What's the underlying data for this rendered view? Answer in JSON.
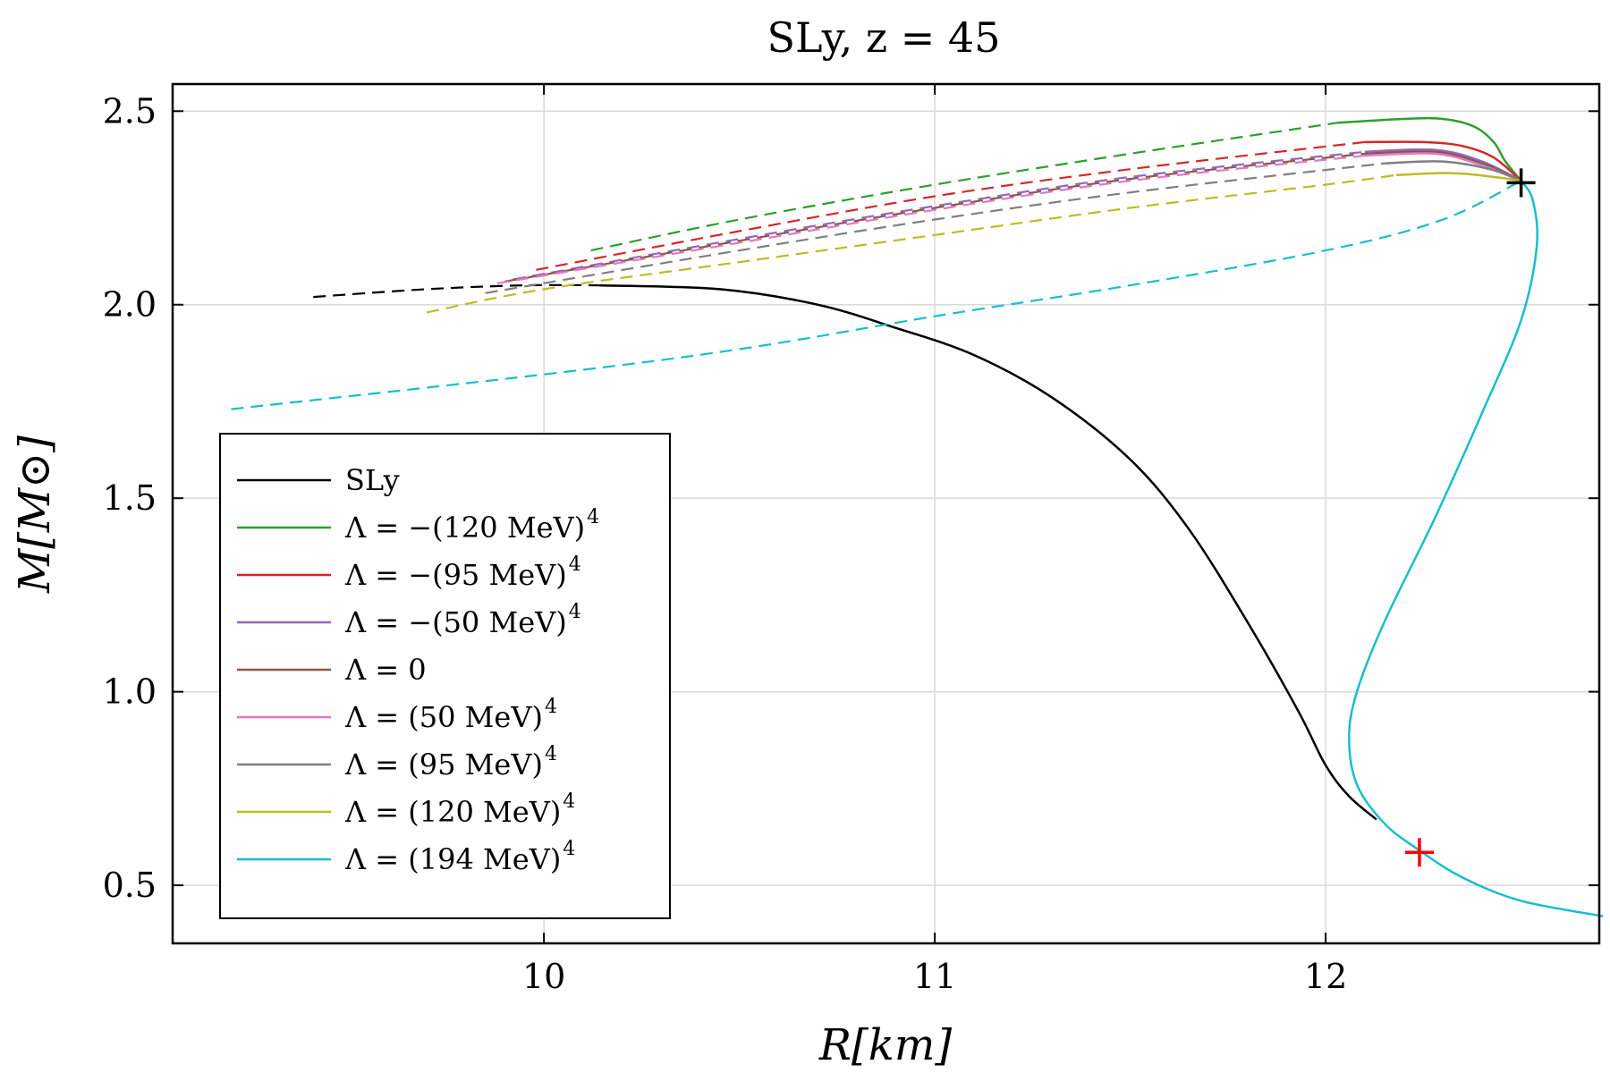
{
  "chart_data": {
    "type": "line",
    "title": "SLy,  z = 45",
    "xlabel": "R[km]",
    "ylabel": "M[M⊙]",
    "xlim": [
      9.05,
      12.7
    ],
    "ylim": [
      0.35,
      2.57
    ],
    "xticks": [
      10,
      11,
      12
    ],
    "xtick_labels": [
      "10",
      "11",
      "12"
    ],
    "yticks": [
      0.5,
      1.0,
      1.5,
      2.0,
      2.5
    ],
    "ytick_labels": [
      "0.5",
      "1.0",
      "1.5",
      "2.0",
      "2.5"
    ],
    "grid": true,
    "legend_position": "bottom-left",
    "series": [
      {
        "name": "SLy",
        "legend_label": "SLy",
        "superscript": "",
        "color": "#000000",
        "solid": [
          [
            10.14,
            2.05
          ],
          [
            10.45,
            2.04
          ],
          [
            10.7,
            2.0
          ],
          [
            10.9,
            1.94
          ],
          [
            11.1,
            1.87
          ],
          [
            11.3,
            1.76
          ],
          [
            11.5,
            1.6
          ],
          [
            11.65,
            1.42
          ],
          [
            11.8,
            1.18
          ],
          [
            11.93,
            0.95
          ],
          [
            12.0,
            0.81
          ],
          [
            12.06,
            0.73
          ],
          [
            12.13,
            0.67
          ]
        ],
        "dashed": [
          [
            9.41,
            2.02
          ],
          [
            9.7,
            2.04
          ],
          [
            9.95,
            2.05
          ],
          [
            10.14,
            2.05
          ]
        ]
      },
      {
        "name": "Lambda -120",
        "legend_label": "Λ = −(120 MeV)",
        "superscript": "4",
        "color": "#2ca02c",
        "solid": [
          [
            12.03,
            2.47
          ],
          [
            12.2,
            2.48
          ],
          [
            12.3,
            2.48
          ],
          [
            12.38,
            2.46
          ],
          [
            12.43,
            2.42
          ],
          [
            12.46,
            2.37
          ],
          [
            12.5,
            2.32
          ]
        ],
        "dashed": [
          [
            10.12,
            2.14
          ],
          [
            10.5,
            2.22
          ],
          [
            11.0,
            2.31
          ],
          [
            11.5,
            2.39
          ],
          [
            12.03,
            2.47
          ]
        ]
      },
      {
        "name": "Lambda -95",
        "legend_label": "Λ = −(95 MeV)",
        "superscript": "4",
        "color": "#d62728",
        "solid": [
          [
            12.1,
            2.42
          ],
          [
            12.25,
            2.42
          ],
          [
            12.35,
            2.41
          ],
          [
            12.43,
            2.38
          ],
          [
            12.5,
            2.32
          ]
        ],
        "dashed": [
          [
            9.98,
            2.09
          ],
          [
            10.5,
            2.19
          ],
          [
            11.0,
            2.28
          ],
          [
            11.5,
            2.35
          ],
          [
            12.1,
            2.42
          ]
        ]
      },
      {
        "name": "Lambda -50",
        "legend_label": "Λ = −(50 MeV)",
        "superscript": "4",
        "color": "#9467bd",
        "solid": [
          [
            12.1,
            2.395
          ],
          [
            12.28,
            2.4
          ],
          [
            12.4,
            2.37
          ],
          [
            12.5,
            2.32
          ]
        ],
        "dashed": [
          [
            9.92,
            2.065
          ],
          [
            10.5,
            2.17
          ],
          [
            11.0,
            2.255
          ],
          [
            11.5,
            2.33
          ],
          [
            12.1,
            2.395
          ]
        ]
      },
      {
        "name": "Lambda 0",
        "legend_label": "Λ = 0",
        "superscript": "",
        "color": "#8c564b",
        "solid": [
          [
            12.1,
            2.39
          ],
          [
            12.28,
            2.395
          ],
          [
            12.4,
            2.365
          ],
          [
            12.5,
            2.32
          ]
        ],
        "dashed": [
          [
            9.9,
            2.06
          ],
          [
            10.5,
            2.165
          ],
          [
            11.0,
            2.25
          ],
          [
            11.5,
            2.325
          ],
          [
            12.1,
            2.39
          ]
        ]
      },
      {
        "name": "Lambda 50",
        "legend_label": "Λ = (50 MeV)",
        "superscript": "4",
        "color": "#e377c2",
        "solid": [
          [
            12.1,
            2.385
          ],
          [
            12.28,
            2.39
          ],
          [
            12.4,
            2.36
          ],
          [
            12.5,
            2.32
          ]
        ],
        "dashed": [
          [
            9.88,
            2.055
          ],
          [
            10.5,
            2.16
          ],
          [
            11.0,
            2.245
          ],
          [
            11.5,
            2.32
          ],
          [
            12.1,
            2.385
          ]
        ]
      },
      {
        "name": "Lambda 95",
        "legend_label": "Λ = (95 MeV)",
        "superscript": "4",
        "color": "#7f7f7f",
        "solid": [
          [
            12.15,
            2.365
          ],
          [
            12.3,
            2.37
          ],
          [
            12.42,
            2.35
          ],
          [
            12.5,
            2.32
          ]
        ],
        "dashed": [
          [
            9.85,
            2.03
          ],
          [
            10.5,
            2.14
          ],
          [
            11.0,
            2.22
          ],
          [
            11.5,
            2.29
          ],
          [
            12.15,
            2.365
          ]
        ]
      },
      {
        "name": "Lambda 120",
        "legend_label": "Λ = (120 MeV)",
        "superscript": "4",
        "color": "#bcbd22",
        "solid": [
          [
            12.18,
            2.335
          ],
          [
            12.32,
            2.34
          ],
          [
            12.43,
            2.33
          ],
          [
            12.5,
            2.32
          ]
        ],
        "dashed": [
          [
            9.7,
            1.98
          ],
          [
            10.0,
            2.04
          ],
          [
            10.5,
            2.11
          ],
          [
            11.0,
            2.18
          ],
          [
            11.5,
            2.25
          ],
          [
            12.0,
            2.31
          ],
          [
            12.18,
            2.335
          ]
        ]
      },
      {
        "name": "Lambda 194",
        "legend_label": "Λ = (194 MeV)",
        "superscript": "4",
        "color": "#17becf",
        "solid": [
          [
            12.5,
            2.32
          ],
          [
            12.53,
            2.27
          ],
          [
            12.54,
            2.15
          ],
          [
            12.5,
            1.96
          ],
          [
            12.4,
            1.72
          ],
          [
            12.28,
            1.45
          ],
          [
            12.15,
            1.18
          ],
          [
            12.08,
            1.0
          ],
          [
            12.06,
            0.88
          ],
          [
            12.08,
            0.76
          ],
          [
            12.15,
            0.66
          ],
          [
            12.24,
            0.59
          ],
          [
            12.35,
            0.52
          ],
          [
            12.5,
            0.46
          ],
          [
            12.71,
            0.42
          ]
        ],
        "dashed": [
          [
            9.2,
            1.73
          ],
          [
            10.0,
            1.82
          ],
          [
            10.5,
            1.885
          ],
          [
            11.0,
            1.97
          ],
          [
            11.5,
            2.05
          ],
          [
            12.0,
            2.14
          ],
          [
            12.3,
            2.22
          ],
          [
            12.5,
            2.32
          ]
        ]
      }
    ],
    "markers": [
      {
        "name": "black-cross-marker",
        "x": 12.5,
        "y": 2.315,
        "color": "#000000"
      },
      {
        "name": "red-cross-marker",
        "x": 12.24,
        "y": 0.585,
        "color": "#ff0000"
      }
    ]
  }
}
